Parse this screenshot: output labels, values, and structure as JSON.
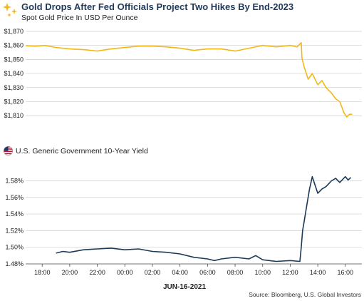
{
  "header": {
    "title": "Gold Drops After Fed Officials Project Two Hikes By End-2023",
    "subtitle": "Spot Gold Price In USD Per Ounce"
  },
  "yield_panel": {
    "title": "U.S. Generic Government 10-Year Yield"
  },
  "footer": {
    "date": "JUN-16-2021",
    "source": "Source: Bloomberg, U.S. Global Investors"
  },
  "colors": {
    "gold": "#F2B818",
    "yield": "#1B3A57",
    "title": "#1f3a5c"
  },
  "chart_data": [
    {
      "type": "line",
      "name": "gold",
      "ylim": [
        1805,
        1870
      ],
      "yticks": [
        1810,
        1820,
        1830,
        1840,
        1850,
        1860,
        1870
      ],
      "ytick_labels": [
        "$1,810",
        "$1,820",
        "$1,830",
        "$1,840",
        "$1,850",
        "$1,860",
        "$1,870"
      ],
      "grid": true,
      "x_hours": [
        16.8,
        17.5,
        18.2,
        19,
        20,
        21,
        22,
        23,
        24,
        25,
        26,
        27,
        28,
        29,
        30,
        31,
        32,
        33,
        34,
        35,
        36,
        36.5,
        36.8,
        36.85,
        37,
        37.3,
        37.6,
        38,
        38.3,
        38.6,
        39,
        39.3,
        39.6,
        39.9,
        40.1,
        40.3,
        40.5
      ],
      "values": [
        1859.8,
        1859.5,
        1860,
        1858.5,
        1857.5,
        1857,
        1856,
        1857.5,
        1858.5,
        1859.5,
        1859.5,
        1859,
        1858,
        1856.5,
        1857.5,
        1857.5,
        1856,
        1858,
        1860,
        1859,
        1860,
        1859,
        1862,
        1851,
        1845,
        1836,
        1840,
        1832,
        1835,
        1830,
        1826,
        1822,
        1820,
        1812,
        1809,
        1811,
        1811
      ]
    },
    {
      "type": "line",
      "name": "yield",
      "ylim": [
        1.48,
        1.595
      ],
      "yticks": [
        1.48,
        1.5,
        1.52,
        1.54,
        1.56,
        1.58
      ],
      "ytick_labels": [
        "1.48%",
        "1.50%",
        "1.52%",
        "1.54%",
        "1.56%",
        "1.58%"
      ],
      "xticks": [
        18,
        20,
        22,
        24,
        26,
        28,
        30,
        32,
        34,
        36,
        38,
        40
      ],
      "xtick_labels": [
        "18:00",
        "20:00",
        "22:00",
        "00:00",
        "02:00",
        "04:00",
        "06:00",
        "08:00",
        "10:00",
        "12:00",
        "14:00",
        "16:00"
      ],
      "grid": true,
      "x_hours": [
        19,
        19.5,
        20,
        21,
        22,
        23,
        24,
        25,
        26,
        27,
        28,
        29,
        30,
        30.5,
        31,
        32,
        33,
        33.5,
        34,
        35,
        36,
        36.7,
        36.8,
        36.9,
        37,
        37.2,
        37.4,
        37.6,
        37.8,
        38,
        38.3,
        38.6,
        39,
        39.3,
        39.6,
        40,
        40.2,
        40.4
      ],
      "values": [
        1.493,
        1.495,
        1.494,
        1.497,
        1.498,
        1.499,
        1.497,
        1.498,
        1.495,
        1.494,
        1.492,
        1.488,
        1.486,
        1.484,
        1.486,
        1.488,
        1.486,
        1.49,
        1.485,
        1.483,
        1.484,
        1.483,
        1.5,
        1.52,
        1.53,
        1.55,
        1.57,
        1.585,
        1.575,
        1.565,
        1.57,
        1.573,
        1.58,
        1.583,
        1.578,
        1.585,
        1.581,
        1.584
      ]
    }
  ]
}
